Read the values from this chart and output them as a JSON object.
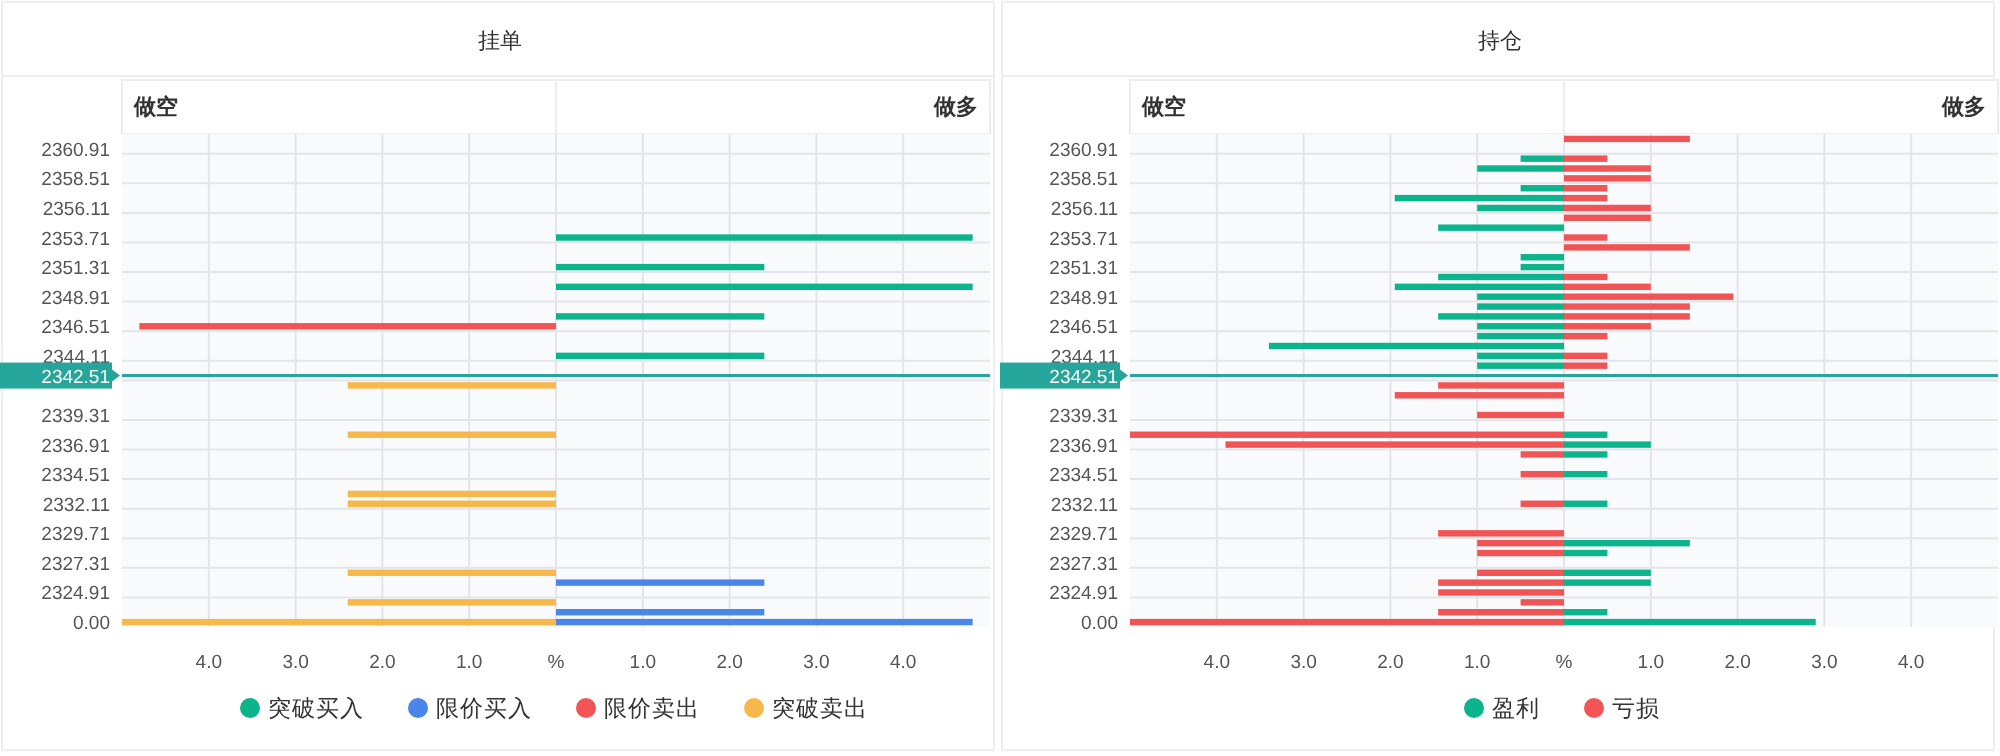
{
  "chart_data": [
    {
      "type": "bar",
      "orientation": "horizontal",
      "stacked": true,
      "title": "挂单",
      "annotations": [
        "做空",
        "做多"
      ],
      "categories": [
        null,
        "2360.91",
        null,
        null,
        "2358.51",
        null,
        null,
        "2356.11",
        null,
        null,
        "2353.71",
        null,
        null,
        "2351.31",
        null,
        null,
        "2348.91",
        null,
        null,
        "2346.51",
        null,
        null,
        "2344.11",
        null,
        "2342.51",
        null,
        null,
        null,
        "2339.31",
        null,
        null,
        "2336.91",
        null,
        null,
        "2334.51",
        null,
        null,
        "2332.11",
        null,
        null,
        "2329.71",
        null,
        null,
        "2327.31",
        null,
        null,
        "2324.91",
        null,
        null,
        "0.00"
      ],
      "series": [
        {
          "name": "突破买入",
          "color": "#0bb48a",
          "values": [
            null,
            null,
            null,
            null,
            null,
            null,
            null,
            null,
            null,
            null,
            4.8,
            null,
            null,
            2.4,
            null,
            4.8,
            null,
            null,
            2.4,
            null,
            null,
            null,
            2.4,
            null,
            null,
            null,
            null,
            null,
            null,
            null,
            null,
            null,
            null,
            null,
            null,
            null,
            null,
            null,
            null,
            null,
            null,
            null,
            null,
            null,
            null,
            null,
            null,
            null,
            null,
            null
          ]
        },
        {
          "name": "限价买入",
          "color": "#4a86e8",
          "values": [
            null,
            null,
            null,
            null,
            null,
            null,
            null,
            null,
            null,
            null,
            null,
            null,
            null,
            null,
            null,
            null,
            null,
            null,
            null,
            null,
            null,
            null,
            null,
            null,
            null,
            null,
            null,
            null,
            null,
            null,
            null,
            null,
            null,
            null,
            null,
            null,
            null,
            null,
            null,
            null,
            null,
            null,
            null,
            null,
            null,
            2.4,
            null,
            null,
            2.4,
            4.8
          ]
        },
        {
          "name": "限价卖出",
          "color": "#f05454",
          "values": [
            null,
            null,
            null,
            null,
            null,
            null,
            null,
            null,
            null,
            null,
            null,
            null,
            null,
            null,
            null,
            null,
            null,
            null,
            null,
            -4.8,
            null,
            null,
            null,
            null,
            null,
            null,
            null,
            null,
            null,
            null,
            null,
            null,
            null,
            null,
            null,
            null,
            null,
            null,
            null,
            null,
            null,
            null,
            null,
            null,
            null,
            null,
            null,
            null,
            null,
            null
          ]
        },
        {
          "name": "突破卖出",
          "color": "#f7b84b",
          "values": [
            null,
            null,
            null,
            null,
            null,
            null,
            null,
            null,
            null,
            null,
            null,
            null,
            null,
            null,
            null,
            null,
            null,
            null,
            null,
            null,
            null,
            null,
            null,
            null,
            null,
            -2.4,
            null,
            null,
            null,
            null,
            -2.4,
            null,
            null,
            null,
            null,
            null,
            -2.4,
            -2.4,
            null,
            null,
            null,
            null,
            null,
            null,
            -2.4,
            null,
            null,
            -2.4,
            null,
            -5.0
          ]
        }
      ],
      "xlim": [
        -5,
        5
      ],
      "xticks": [
        {
          "value": -4,
          "label": "4.0"
        },
        {
          "value": -3,
          "label": "3.0"
        },
        {
          "value": -2,
          "label": "2.0"
        },
        {
          "value": -1,
          "label": "1.0"
        },
        {
          "value": 0,
          "label": "%"
        },
        {
          "value": 1,
          "label": "1.0"
        },
        {
          "value": 2,
          "label": "2.0"
        },
        {
          "value": 3,
          "label": "3.0"
        },
        {
          "value": 4,
          "label": "4.0"
        }
      ],
      "ref_lines": [
        {
          "axis": "y",
          "value": "2342.51",
          "label": "2342.51",
          "color": "#26a69a"
        }
      ],
      "grid": true,
      "legend": "bottom"
    },
    {
      "type": "bar",
      "orientation": "horizontal",
      "stacked": true,
      "title": "持仓",
      "annotations": [
        "做空",
        "做多"
      ],
      "categories": [
        null,
        "2360.91",
        null,
        null,
        "2358.51",
        null,
        null,
        "2356.11",
        null,
        null,
        "2353.71",
        null,
        null,
        "2351.31",
        null,
        null,
        "2348.91",
        null,
        null,
        "2346.51",
        null,
        null,
        "2344.11",
        null,
        "2342.51",
        null,
        null,
        null,
        "2339.31",
        null,
        null,
        "2336.91",
        null,
        null,
        "2334.51",
        null,
        null,
        "2332.11",
        null,
        null,
        "2329.71",
        null,
        null,
        "2327.31",
        null,
        null,
        "2324.91",
        null,
        null,
        "0.00"
      ],
      "series": [
        {
          "name": "盈利",
          "color": "#0bb48a",
          "values": [
            null,
            null,
            -0.5,
            -1.0,
            null,
            -0.5,
            -1.95,
            -1.0,
            null,
            -1.45,
            null,
            null,
            -0.5,
            -0.5,
            -1.45,
            -1.95,
            -1.0,
            -1.0,
            -1.45,
            -1.0,
            -1.0,
            -3.4,
            -1.0,
            -1.0,
            null,
            null,
            null,
            null,
            null,
            null,
            0.5,
            1.0,
            0.5,
            null,
            0.5,
            null,
            null,
            0.5,
            null,
            null,
            null,
            1.45,
            0.5,
            null,
            1.0,
            1.0,
            null,
            null,
            0.5,
            2.9
          ]
        },
        {
          "name": "亏损",
          "color": "#f05454",
          "values": [
            1.45,
            null,
            0.5,
            1.0,
            1.0,
            0.5,
            0.5,
            1.0,
            1.0,
            null,
            0.5,
            1.45,
            null,
            null,
            0.5,
            1.0,
            1.95,
            1.45,
            1.45,
            1.0,
            0.5,
            null,
            0.5,
            0.5,
            null,
            -1.45,
            -1.95,
            null,
            -1.0,
            null,
            -5.0,
            -3.9,
            -0.5,
            null,
            -0.5,
            null,
            null,
            -0.5,
            null,
            null,
            -1.45,
            -1.0,
            -1.0,
            null,
            -1.0,
            -1.45,
            -1.45,
            -0.5,
            -1.45,
            -5.0
          ]
        }
      ],
      "xlim": [
        -5,
        5
      ],
      "xticks": [
        {
          "value": -4,
          "label": "4.0"
        },
        {
          "value": -3,
          "label": "3.0"
        },
        {
          "value": -2,
          "label": "2.0"
        },
        {
          "value": -1,
          "label": "1.0"
        },
        {
          "value": 0,
          "label": "%"
        },
        {
          "value": 1,
          "label": "1.0"
        },
        {
          "value": 2,
          "label": "2.0"
        },
        {
          "value": 3,
          "label": "3.0"
        },
        {
          "value": 4,
          "label": "4.0"
        }
      ],
      "ref_lines": [
        {
          "axis": "y",
          "value": "2342.51",
          "label": "2342.51",
          "color": "#26a69a"
        }
      ],
      "grid": true,
      "legend": "bottom"
    }
  ]
}
